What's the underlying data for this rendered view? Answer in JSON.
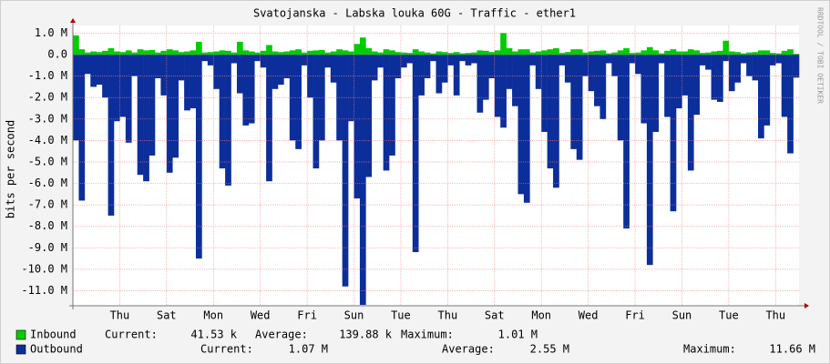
{
  "chart_data": {
    "type": "bar",
    "title": "Svatojanska - Labska louka 60G - Traffic - ether1",
    "y_label": "bits per second",
    "watermark": "RRDTOOL / TOBI OETIKER",
    "xlim": [
      0,
      31
    ],
    "xticks": [
      {
        "value": 2,
        "label": "Thu"
      },
      {
        "value": 4,
        "label": "Sat"
      },
      {
        "value": 6,
        "label": "Mon"
      },
      {
        "value": 8,
        "label": "Wed"
      },
      {
        "value": 10,
        "label": "Fri"
      },
      {
        "value": 12,
        "label": "Sun"
      },
      {
        "value": 14,
        "label": "Tue"
      },
      {
        "value": 16,
        "label": "Thu"
      },
      {
        "value": 18,
        "label": "Sat"
      },
      {
        "value": 20,
        "label": "Mon"
      },
      {
        "value": 22,
        "label": "Wed"
      },
      {
        "value": 24,
        "label": "Fri"
      },
      {
        "value": 26,
        "label": "Sun"
      },
      {
        "value": 28,
        "label": "Tue"
      },
      {
        "value": 30,
        "label": "Thu"
      }
    ],
    "ylim": [
      -11700000,
      1360000
    ],
    "yticks": [
      {
        "value": 1000000,
        "label": "1.0 M"
      },
      {
        "value": 0,
        "label": "0.0"
      },
      {
        "value": -1000000,
        "label": "-1.0 M"
      },
      {
        "value": -2000000,
        "label": "-2.0 M"
      },
      {
        "value": -3000000,
        "label": "-3.0 M"
      },
      {
        "value": -4000000,
        "label": "-4.0 M"
      },
      {
        "value": -5000000,
        "label": "-5.0 M"
      },
      {
        "value": -6000000,
        "label": "-6.0 M"
      },
      {
        "value": -7000000,
        "label": "-7.0 M"
      },
      {
        "value": -8000000,
        "label": "-8.0 M"
      },
      {
        "value": -9000000,
        "label": "-9.0 M"
      },
      {
        "value": -10000000,
        "label": "-10.0 M"
      },
      {
        "value": -11000000,
        "label": "-11.0 M"
      }
    ],
    "grid": true,
    "bar_width": 0.25,
    "x": [
      0,
      0.25,
      0.5,
      0.75,
      1,
      1.25,
      1.5,
      1.75,
      2,
      2.25,
      2.5,
      2.75,
      3,
      3.25,
      3.5,
      3.75,
      4,
      4.25,
      4.5,
      4.75,
      5,
      5.25,
      5.5,
      5.75,
      6,
      6.25,
      6.5,
      6.75,
      7,
      7.25,
      7.5,
      7.75,
      8,
      8.25,
      8.5,
      8.75,
      9,
      9.25,
      9.5,
      9.75,
      10,
      10.25,
      10.5,
      10.75,
      11,
      11.25,
      11.5,
      11.75,
      12,
      12.25,
      12.5,
      12.75,
      13,
      13.25,
      13.5,
      13.75,
      14,
      14.25,
      14.5,
      14.75,
      15,
      15.25,
      15.5,
      15.75,
      16,
      16.25,
      16.5,
      16.75,
      17,
      17.25,
      17.5,
      17.75,
      18,
      18.25,
      18.5,
      18.75,
      19,
      19.25,
      19.5,
      19.75,
      20,
      20.25,
      20.5,
      20.75,
      21,
      21.25,
      21.5,
      21.75,
      22,
      22.25,
      22.5,
      22.75,
      23,
      23.25,
      23.5,
      23.75,
      24,
      24.25,
      24.5,
      24.75,
      25,
      25.25,
      25.5,
      25.75,
      26,
      26.25,
      26.5,
      26.75,
      27,
      27.25,
      27.5,
      27.75,
      28,
      28.25,
      28.5,
      28.75,
      29,
      29.25,
      29.5,
      29.75,
      30,
      30.25,
      30.5,
      30.75
    ],
    "legend_labels": [
      "Current:",
      "Average:",
      "Maximum:"
    ],
    "series": [
      {
        "name": "Inbound",
        "color": "#00cc00",
        "current": "41.53 k",
        "average": "139.88 k",
        "maximum": "1.01 M",
        "values": [
          900000,
          250000,
          100000,
          150000,
          120000,
          180000,
          300000,
          150000,
          120000,
          200000,
          100000,
          250000,
          200000,
          220000,
          100000,
          180000,
          250000,
          200000,
          120000,
          150000,
          200000,
          600000,
          100000,
          120000,
          150000,
          200000,
          180000,
          100000,
          600000,
          200000,
          150000,
          100000,
          180000,
          450000,
          150000,
          120000,
          150000,
          200000,
          250000,
          100000,
          180000,
          200000,
          220000,
          100000,
          150000,
          250000,
          200000,
          150000,
          500000,
          800000,
          300000,
          150000,
          100000,
          250000,
          200000,
          120000,
          100000,
          80000,
          250000,
          150000,
          100000,
          60000,
          150000,
          120000,
          80000,
          120000,
          60000,
          80000,
          100000,
          200000,
          180000,
          120000,
          200000,
          1010000,
          300000,
          150000,
          250000,
          250000,
          100000,
          150000,
          200000,
          250000,
          300000,
          80000,
          120000,
          250000,
          250000,
          100000,
          150000,
          180000,
          200000,
          60000,
          100000,
          200000,
          300000,
          80000,
          100000,
          200000,
          350000,
          200000,
          60000,
          180000,
          250000,
          150000,
          150000,
          250000,
          200000,
          80000,
          100000,
          150000,
          180000,
          650000,
          150000,
          120000,
          60000,
          100000,
          120000,
          200000,
          200000,
          80000,
          60000,
          180000,
          250000,
          41530
        ]
      },
      {
        "name": "Outbound",
        "color": "#0c2e9b",
        "current": "1.07 M",
        "average": "2.55 M",
        "maximum": "11.66 M",
        "values": [
          -4000000,
          -6800000,
          -900000,
          -1500000,
          -1400000,
          -2000000,
          -7500000,
          -3100000,
          -2900000,
          -4100000,
          -1000000,
          -5600000,
          -5900000,
          -4700000,
          -1100000,
          -1900000,
          -5500000,
          -4800000,
          -1200000,
          -2600000,
          -2500000,
          -9500000,
          -300000,
          -500000,
          -1600000,
          -5300000,
          -6100000,
          -400000,
          -1800000,
          -3300000,
          -3200000,
          -300000,
          -600000,
          -5900000,
          -1600000,
          -1400000,
          -1100000,
          -4000000,
          -4400000,
          -500000,
          -2000000,
          -5300000,
          -4000000,
          -600000,
          -1300000,
          -4000000,
          -10800000,
          -3100000,
          -6700000,
          -11660000,
          -5700000,
          -1200000,
          -600000,
          -5400000,
          -4700000,
          -1100000,
          -600000,
          -400000,
          -9200000,
          -1900000,
          -1100000,
          -300000,
          -1800000,
          -1300000,
          -500000,
          -1900000,
          -300000,
          -500000,
          -400000,
          -2700000,
          -2100000,
          -1100000,
          -2900000,
          -3400000,
          -1600000,
          -2400000,
          -6500000,
          -6900000,
          -500000,
          -1600000,
          -3600000,
          -5300000,
          -6200000,
          -500000,
          -1300000,
          -4400000,
          -4900000,
          -1000000,
          -1700000,
          -2400000,
          -3000000,
          -400000,
          -1000000,
          -4000000,
          -8100000,
          -400000,
          -900000,
          -3200000,
          -9800000,
          -3600000,
          -400000,
          -2900000,
          -7300000,
          -2500000,
          -1900000,
          -5400000,
          -2800000,
          -500000,
          -700000,
          -2100000,
          -2200000,
          -300000,
          -1700000,
          -1300000,
          -400000,
          -1000000,
          -1200000,
          -3900000,
          -3300000,
          -500000,
          -400000,
          -2900000,
          -4600000,
          -1070000
        ]
      }
    ]
  }
}
